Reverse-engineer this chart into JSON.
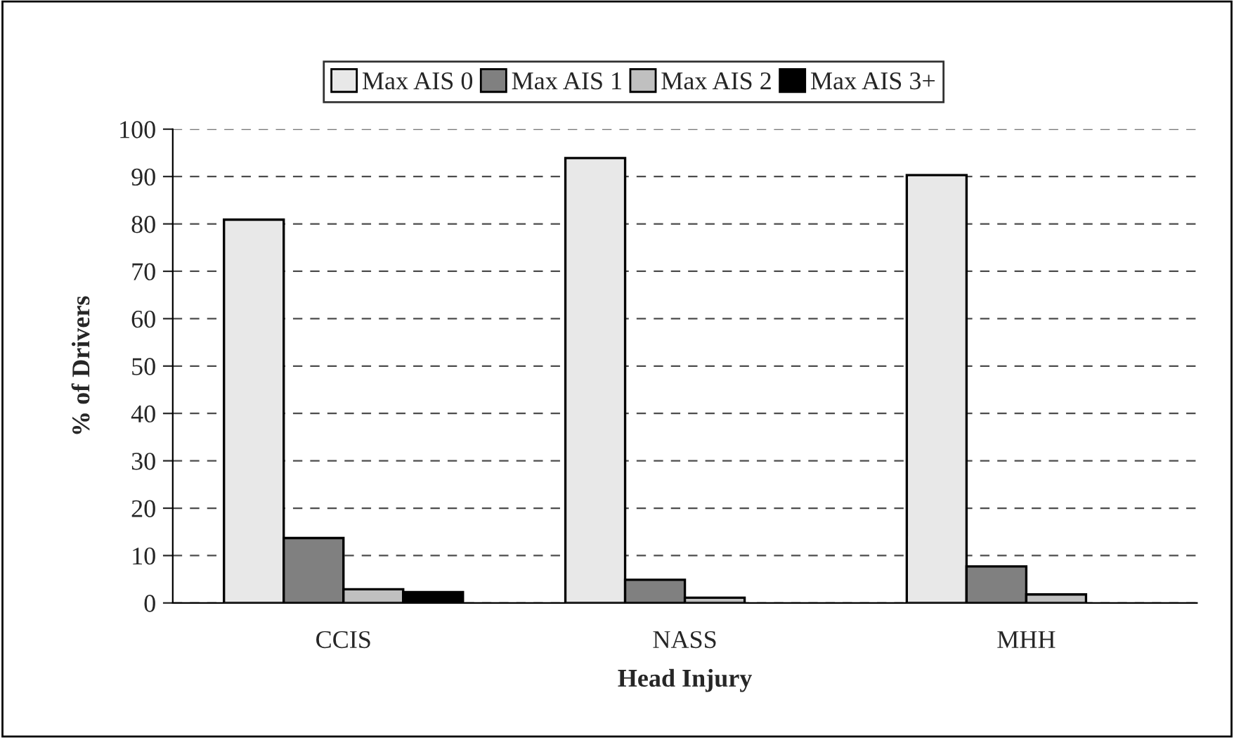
{
  "chart_data": {
    "type": "bar",
    "xlabel": "Head Injury",
    "ylabel": "% of Drivers",
    "categories": [
      "CCIS",
      "NASS",
      "MHH"
    ],
    "series": [
      {
        "name": "Max AIS 0",
        "color": "#e8e8e8",
        "values": [
          80.9,
          93.9,
          90.3
        ]
      },
      {
        "name": "Max AIS 1",
        "color": "#808080",
        "values": [
          13.7,
          4.9,
          7.7
        ]
      },
      {
        "name": "Max AIS 2",
        "color": "#c0c0c0",
        "values": [
          2.9,
          1.1,
          1.8
        ]
      },
      {
        "name": "Max AIS 3+",
        "color": "#000000",
        "values": [
          2.3,
          null,
          null
        ]
      }
    ],
    "ylim": [
      0,
      100
    ],
    "yticks": [
      0,
      10,
      20,
      30,
      40,
      50,
      60,
      70,
      80,
      90,
      100
    ],
    "grid": "y",
    "legend": "top"
  }
}
